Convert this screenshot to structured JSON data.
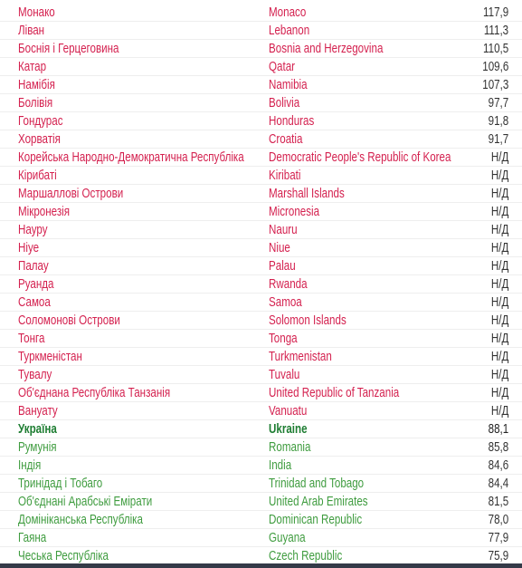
{
  "table": {
    "sections": [
      {
        "rows": [
          [
            "Монако",
            "Monaco",
            "117,9"
          ],
          [
            "Ліван",
            "Lebanon",
            "111,3"
          ],
          [
            "Боснія і Герцеговина",
            "Bosnia and Herzegovina",
            "110,5"
          ],
          [
            "Катар",
            "Qatar",
            "109,6"
          ],
          [
            "Намібія",
            "Namibia",
            "107,3"
          ],
          [
            "Болівія",
            "Bolivia",
            "97,7"
          ],
          [
            "Гондурас",
            "Honduras",
            "91,8"
          ],
          [
            "Хорватія",
            "Croatia",
            "91,7"
          ],
          [
            "Корейська Народно-Демократична Республіка",
            "Democratic People's Republic of Korea",
            "Н/Д"
          ],
          [
            "Кірибаті",
            "Kiribati",
            "Н/Д"
          ],
          [
            "Маршаллові Острови",
            "Marshall Islands",
            "Н/Д"
          ],
          [
            "Мікронезія",
            "Micronesia",
            "Н/Д"
          ],
          [
            "Науру",
            "Nauru",
            "Н/Д"
          ],
          [
            "Ніуе",
            "Niue",
            "Н/Д"
          ],
          [
            "Палау",
            "Palau",
            "Н/Д"
          ],
          [
            "Руанда",
            "Rwanda",
            "Н/Д"
          ],
          [
            "Самоа",
            "Samoa",
            "Н/Д"
          ],
          [
            "Соломонові Острови",
            "Solomon Islands",
            "Н/Д"
          ],
          [
            "Тонга",
            "Tonga",
            "Н/Д"
          ],
          [
            "Туркменістан",
            "Turkmenistan",
            "Н/Д"
          ],
          [
            "Тувалу",
            "Tuvalu",
            "Н/Д"
          ],
          [
            "Об'єднана Республіка Танзанія",
            "United Republic of Tanzania",
            "Н/Д"
          ],
          [
            "Вануату",
            "Vanuatu",
            "Н/Д"
          ]
        ]
      },
      {
        "rows": [
          [
            "Україна",
            "Ukraine",
            "88,1"
          ]
        ]
      },
      {
        "rows": [
          [
            "Румунія",
            "Romania",
            "85,8"
          ],
          [
            "Індія",
            "India",
            "84,6"
          ],
          [
            "Тринідад і Тобаго",
            "Trinidad and Tobago",
            "84,4"
          ],
          [
            "Об'єднані Арабські Емірати",
            "United Arab Emirates",
            "81,5"
          ],
          [
            "Домініканська Республіка",
            "Dominican Republic",
            "78,0"
          ],
          [
            "Гаяна",
            "Guyana",
            "77,9"
          ],
          [
            "Чеська Республіка",
            "Czech Republic",
            "75,9"
          ]
        ]
      }
    ]
  }
}
